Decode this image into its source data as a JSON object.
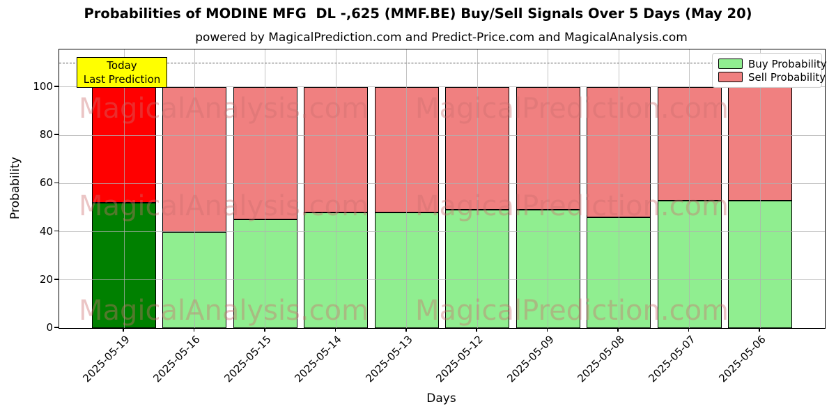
{
  "title": "Probabilities of MODINE MFG  DL -,625 (MMF.BE) Buy/Sell Signals Over 5 Days (May 20)",
  "subtitle": "powered by MagicalPrediction.com and Predict-Price.com and MagicalAnalysis.com",
  "annotation": {
    "line1": "Today",
    "line2": "Last Prediction"
  },
  "watermark": {
    "left_text": "MagicalAnalysis.com",
    "right_text": "MagicalPrediction.com"
  },
  "legend": {
    "items": [
      {
        "label": "Buy Probability",
        "color": "#90EE90"
      },
      {
        "label": "Sell Probability",
        "color": "#F08080"
      }
    ]
  },
  "colors": {
    "buy": "#90EE90",
    "sell": "#F08080",
    "buy_highlight": "#008000",
    "sell_highlight": "#FF0000",
    "annotation_bg": "#FFFF00",
    "grid": "#B0B0B0",
    "dashed_line": "#555555"
  },
  "chart_data": {
    "type": "bar",
    "stacked": true,
    "title": "Probabilities of MODINE MFG  DL -,625 (MMF.BE) Buy/Sell Signals Over 5 Days (May 20)",
    "xlabel": "Days",
    "ylabel": "Probability",
    "categories": [
      "2025-05-19",
      "2025-05-16",
      "2025-05-15",
      "2025-05-14",
      "2025-05-13",
      "2025-05-12",
      "2025-05-09",
      "2025-05-08",
      "2025-05-07",
      "2025-05-06"
    ],
    "series": [
      {
        "name": "Buy Probability",
        "color": "#90EE90",
        "highlight_color": "#008000",
        "values": [
          52,
          40,
          45,
          48,
          48,
          49,
          49,
          46,
          53,
          53
        ]
      },
      {
        "name": "Sell Probability",
        "color": "#F08080",
        "highlight_color": "#FF0000",
        "values": [
          48,
          60,
          55,
          52,
          52,
          51,
          51,
          54,
          47,
          47
        ]
      }
    ],
    "highlight_index": 0,
    "yticks": [
      0,
      20,
      40,
      60,
      80,
      100
    ],
    "ylim": [
      0,
      115.6
    ],
    "dashed_line_y": 110,
    "grid": true,
    "legend_position": "upper right"
  }
}
